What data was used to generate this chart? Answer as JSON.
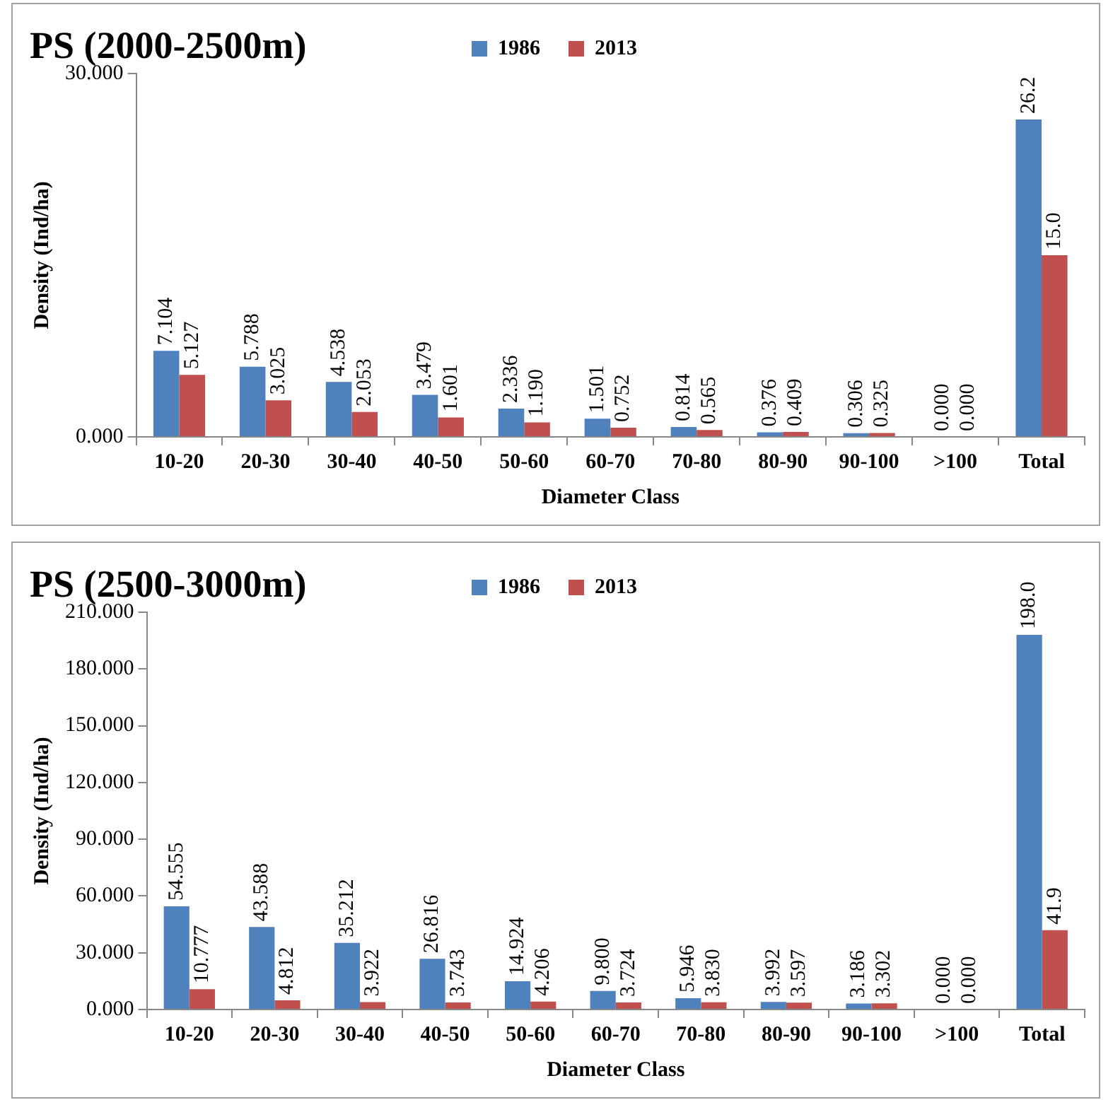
{
  "chart_data": [
    {
      "type": "bar",
      "title": "PS (2000-2500m)",
      "xlabel": "Diameter Class",
      "ylabel": "Density (Ind/ha)",
      "legend": "top",
      "categories": [
        "10-20",
        "20-30",
        "30-40",
        "40-50",
        "50-60",
        "60-70",
        "70-80",
        "80-90",
        "90-100",
        ">100",
        "Total"
      ],
      "ylim": [
        0,
        30
      ],
      "yticks": [
        {
          "value": 0,
          "label": "0.000"
        },
        {
          "value": 30,
          "label": "30.000"
        }
      ],
      "series": [
        {
          "name": "1986",
          "color": "#4f81bd",
          "values": [
            7.104,
            5.788,
            4.538,
            3.479,
            2.336,
            1.501,
            0.814,
            0.376,
            0.306,
            0,
            26.2
          ],
          "value_labels": [
            "7.104",
            "5.788",
            "4.538",
            "3.479",
            "2.336",
            "1.501",
            "0.814",
            "0.376",
            "0.306",
            "0.000",
            "26.2"
          ]
        },
        {
          "name": "2013",
          "color": "#c0504d",
          "values": [
            5.127,
            3.025,
            2.053,
            1.601,
            1.19,
            0.752,
            0.565,
            0.409,
            0.325,
            0,
            15.0
          ],
          "value_labels": [
            "5.127",
            "3.025",
            "2.053",
            "1.601",
            "1.190",
            "0.752",
            "0.565",
            "0.409",
            "0.325",
            "0.000",
            "15.0"
          ]
        }
      ]
    },
    {
      "type": "bar",
      "title": "PS (2500-3000m)",
      "xlabel": "Diameter Class",
      "ylabel": "Density (Ind/ha)",
      "legend": "top",
      "categories": [
        "10-20",
        "20-30",
        "30-40",
        "40-50",
        "50-60",
        "60-70",
        "70-80",
        "80-90",
        "90-100",
        ">100",
        "Total"
      ],
      "ylim": [
        0,
        210
      ],
      "yticks": [
        {
          "value": 0,
          "label": "0.000"
        },
        {
          "value": 30,
          "label": "30.000"
        },
        {
          "value": 60,
          "label": "60.000"
        },
        {
          "value": 90,
          "label": "90.000"
        },
        {
          "value": 120,
          "label": "120.000"
        },
        {
          "value": 150,
          "label": "150.000"
        },
        {
          "value": 180,
          "label": "180.000"
        },
        {
          "value": 210,
          "label": "210.000"
        }
      ],
      "series": [
        {
          "name": "1986",
          "color": "#4f81bd",
          "values": [
            54.555,
            43.588,
            35.212,
            26.816,
            14.924,
            9.8,
            5.946,
            3.992,
            3.186,
            0,
            198.0
          ],
          "value_labels": [
            "54.555",
            "43.588",
            "35.212",
            "26.816",
            "14.924",
            "9.800",
            "5.946",
            "3.992",
            "3.186",
            "0.000",
            "198.0"
          ]
        },
        {
          "name": "2013",
          "color": "#c0504d",
          "values": [
            10.777,
            4.812,
            3.922,
            3.743,
            4.206,
            3.724,
            3.83,
            3.597,
            3.302,
            0,
            41.9
          ],
          "value_labels": [
            "10.777",
            "4.812",
            "3.922",
            "3.743",
            "4.206",
            "3.724",
            "3.830",
            "3.597",
            "3.302",
            "0.000",
            "41.9"
          ]
        }
      ]
    }
  ]
}
